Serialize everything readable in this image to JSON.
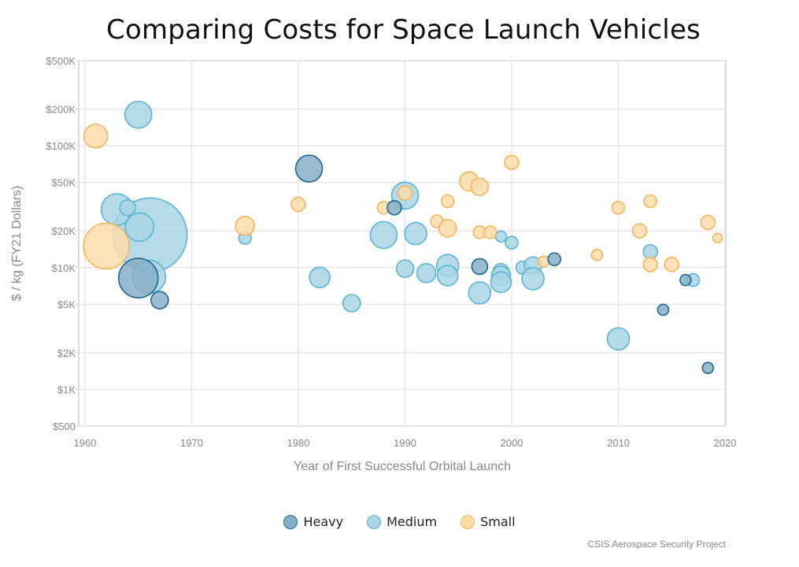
{
  "chart_data": {
    "type": "scatter",
    "title": "Comparing Costs for Space Launch Vehicles",
    "xlabel": "Year of First Successful Orbital Launch",
    "ylabel": "$ / kg (FY21 Dollars)",
    "xlim": [
      1960,
      2020
    ],
    "ylim": [
      500,
      500000
    ],
    "yscale": "log",
    "grid": true,
    "legend_position": "bottom",
    "x_ticks": [
      {
        "value": 1960,
        "label": "1960"
      },
      {
        "value": 1970,
        "label": "1970"
      },
      {
        "value": 1980,
        "label": "1980"
      },
      {
        "value": 1990,
        "label": "1990"
      },
      {
        "value": 2000,
        "label": "2000"
      },
      {
        "value": 2010,
        "label": "2010"
      },
      {
        "value": 2020,
        "label": "2020"
      }
    ],
    "y_ticks": [
      {
        "value": 500000,
        "label": "$500K"
      },
      {
        "value": 200000,
        "label": "$200K"
      },
      {
        "value": 100000,
        "label": "$100K"
      },
      {
        "value": 50000,
        "label": "$50K"
      },
      {
        "value": 20000,
        "label": "$20K"
      },
      {
        "value": 10000,
        "label": "$10K"
      },
      {
        "value": 5000,
        "label": "$5K"
      },
      {
        "value": 2000,
        "label": "$2K"
      },
      {
        "value": 1000,
        "label": "$1K"
      },
      {
        "value": 500,
        "label": "$500"
      }
    ],
    "series": [
      {
        "name": "Medium",
        "fill": "#a8d5e5",
        "stroke": "#5bb4d0",
        "points": [
          {
            "x": 1966.1,
            "y": 18500,
            "size": 47
          },
          {
            "x": 1965.0,
            "y": 180000,
            "size": 17
          },
          {
            "x": 1963.0,
            "y": 30000,
            "size": 20
          },
          {
            "x": 1964.0,
            "y": 31000,
            "size": 10
          },
          {
            "x": 1965.1,
            "y": 21500,
            "size": 18
          },
          {
            "x": 1966.0,
            "y": 8400,
            "size": 21
          },
          {
            "x": 1975.0,
            "y": 17500,
            "size": 8
          },
          {
            "x": 1982.0,
            "y": 8300,
            "size": 13
          },
          {
            "x": 1985.0,
            "y": 5100,
            "size": 11
          },
          {
            "x": 1988.0,
            "y": 18500,
            "size": 17
          },
          {
            "x": 1990.0,
            "y": 39000,
            "size": 17
          },
          {
            "x": 1991.0,
            "y": 19000,
            "size": 14
          },
          {
            "x": 1990.0,
            "y": 9800,
            "size": 11
          },
          {
            "x": 1992.0,
            "y": 9000,
            "size": 12
          },
          {
            "x": 1994.0,
            "y": 10400,
            "size": 14
          },
          {
            "x": 1994.0,
            "y": 8600,
            "size": 13
          },
          {
            "x": 1997.0,
            "y": 6200,
            "size": 14
          },
          {
            "x": 1999.0,
            "y": 9300,
            "size": 10
          },
          {
            "x": 1999.0,
            "y": 8600,
            "size": 12
          },
          {
            "x": 1999.0,
            "y": 7600,
            "size": 13
          },
          {
            "x": 1999.0,
            "y": 18000,
            "size": 7
          },
          {
            "x": 2000.0,
            "y": 16000,
            "size": 8
          },
          {
            "x": 2001.0,
            "y": 10000,
            "size": 8
          },
          {
            "x": 2002.0,
            "y": 10400,
            "size": 11
          },
          {
            "x": 2002.0,
            "y": 8100,
            "size": 14
          },
          {
            "x": 2010.0,
            "y": 2600,
            "size": 14
          },
          {
            "x": 2013.0,
            "y": 13500,
            "size": 9
          },
          {
            "x": 2017.0,
            "y": 7900,
            "size": 8
          }
        ]
      },
      {
        "name": "Small",
        "fill": "#fddcaa",
        "stroke": "#f4b55c",
        "points": [
          {
            "x": 1961.0,
            "y": 120000,
            "size": 15
          },
          {
            "x": 1962.0,
            "y": 15000,
            "size": 29
          },
          {
            "x": 1975.0,
            "y": 22000,
            "size": 12
          },
          {
            "x": 1980.0,
            "y": 33000,
            "size": 9
          },
          {
            "x": 1988.0,
            "y": 31000,
            "size": 8
          },
          {
            "x": 1990.0,
            "y": 41000,
            "size": 9
          },
          {
            "x": 1993.0,
            "y": 24000,
            "size": 8
          },
          {
            "x": 1994.0,
            "y": 21000,
            "size": 11
          },
          {
            "x": 1994.0,
            "y": 35000,
            "size": 8
          },
          {
            "x": 1996.0,
            "y": 51000,
            "size": 12
          },
          {
            "x": 1997.0,
            "y": 46000,
            "size": 11
          },
          {
            "x": 1997.0,
            "y": 19500,
            "size": 8
          },
          {
            "x": 1998.0,
            "y": 19500,
            "size": 8
          },
          {
            "x": 2000.0,
            "y": 73000,
            "size": 9
          },
          {
            "x": 2003.0,
            "y": 11200,
            "size": 7
          },
          {
            "x": 2008.0,
            "y": 12700,
            "size": 7
          },
          {
            "x": 2010.0,
            "y": 31000,
            "size": 8
          },
          {
            "x": 2012.0,
            "y": 20000,
            "size": 9
          },
          {
            "x": 2013.0,
            "y": 35000,
            "size": 8
          },
          {
            "x": 2013.0,
            "y": 10600,
            "size": 9
          },
          {
            "x": 2015.0,
            "y": 10600,
            "size": 9
          },
          {
            "x": 2018.4,
            "y": 23500,
            "size": 9
          },
          {
            "x": 2019.3,
            "y": 17500,
            "size": 6
          }
        ]
      },
      {
        "name": "Heavy",
        "fill": "#86afc8",
        "stroke": "#1f6690",
        "points": [
          {
            "x": 1981.0,
            "y": 65000,
            "size": 17
          },
          {
            "x": 1965.0,
            "y": 8200,
            "size": 25
          },
          {
            "x": 1967.0,
            "y": 5400,
            "size": 11
          },
          {
            "x": 1989.0,
            "y": 31000,
            "size": 9
          },
          {
            "x": 1997.0,
            "y": 10200,
            "size": 10
          },
          {
            "x": 2004.0,
            "y": 11700,
            "size": 8
          },
          {
            "x": 2016.3,
            "y": 7900,
            "size": 7
          },
          {
            "x": 2014.2,
            "y": 4500,
            "size": 7
          },
          {
            "x": 2018.4,
            "y": 1500,
            "size": 7
          }
        ]
      }
    ]
  },
  "legend": {
    "items": [
      {
        "label": "Heavy",
        "fill": "#86afc8",
        "stroke": "#1f6690"
      },
      {
        "label": "Medium",
        "fill": "#a8d5e5",
        "stroke": "#5bb4d0"
      },
      {
        "label": "Small",
        "fill": "#fddcaa",
        "stroke": "#f4b55c"
      }
    ]
  },
  "source": "CSIS Aerospace Security Project"
}
